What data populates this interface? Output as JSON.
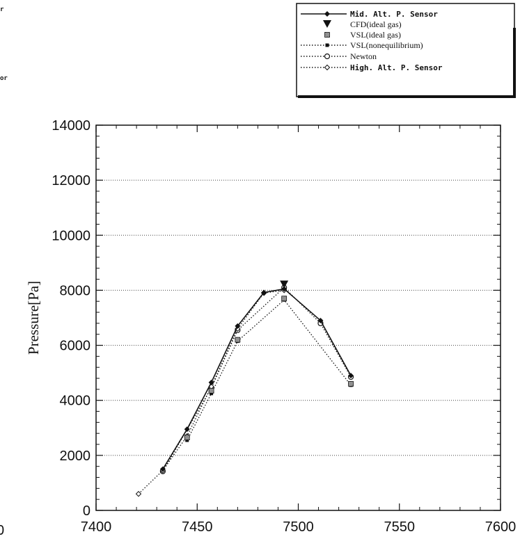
{
  "chart_data": {
    "type": "line",
    "ylabel": "Pressure[Pa]",
    "xlabel": "",
    "xlim": [
      7400,
      7600
    ],
    "ylim": [
      0,
      14000
    ],
    "x_ticks": [
      7400,
      7450,
      7500,
      7550,
      7600
    ],
    "y_ticks": [
      0,
      2000,
      4000,
      6000,
      8000,
      10000,
      12000,
      14000
    ],
    "grid": "dotted-horizontal",
    "legend_position": "top-right",
    "series": [
      {
        "name": "Mid. Alt. P. Sensor",
        "style": "solid-line-filled-diamond",
        "x": [
          7433,
          7445,
          7457,
          7470,
          7483,
          7493,
          7511,
          7526
        ],
        "y": [
          1500,
          2950,
          4650,
          6700,
          7920,
          8050,
          6900,
          4900
        ]
      },
      {
        "name": "CFD(ideal gas)",
        "style": "down-triangle",
        "x": [
          7493
        ],
        "y": [
          8200
        ]
      },
      {
        "name": "VSL(ideal gas)",
        "style": "hatched-square",
        "x": [
          7445,
          7457,
          7470,
          7493,
          7526
        ],
        "y": [
          2650,
          4350,
          6200,
          7700,
          4600
        ]
      },
      {
        "name": "VSL(nonequilibrium)",
        "style": "dotted-line-filled-square",
        "x": [
          7445,
          7457,
          7470,
          7493,
          7526
        ],
        "y": [
          2550,
          4250,
          6150,
          7650,
          4550
        ]
      },
      {
        "name": "Newton",
        "style": "dotted-line-open-circle",
        "x": [
          7433,
          7457,
          7470,
          7493,
          7511,
          7526
        ],
        "y": [
          1420,
          4450,
          6550,
          8100,
          6800,
          4850
        ]
      },
      {
        "name": "High. Alt. P. Sensor",
        "style": "dotted-line-open-diamond",
        "x": [
          7421,
          7433,
          7445,
          7457,
          7470,
          7483,
          7493
        ],
        "y": [
          600,
          1450,
          2700,
          4500,
          6600,
          7900,
          8000
        ]
      }
    ]
  },
  "page_fragments": [
    "r",
    "or",
    "0"
  ]
}
